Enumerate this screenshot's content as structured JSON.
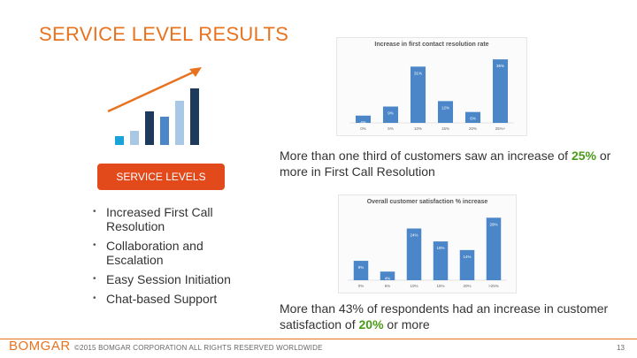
{
  "slide": {
    "title": "SERVICE LEVEL RESULTS",
    "pill_label": "SERVICE LEVELS",
    "bullets": [
      "Increased First Call Resolution",
      "Collaboration and Escalation",
      "Easy Session Initiation",
      "Chat-based Support"
    ]
  },
  "captions": {
    "first": {
      "pre": "More than one third of customers saw an increase of ",
      "highlight": "25%",
      "post": " or more in First Call Resolution"
    },
    "second": {
      "pre": "More than 43% of respondents had an increase in customer satisfaction of ",
      "highlight": "20%",
      "post": " or more"
    }
  },
  "footer": {
    "brand": "BOMGAR",
    "copyright": "©2015 BOMGAR CORPORATION ALL RIGHTS RESERVED WORLDWIDE",
    "page_number": "13"
  },
  "colors": {
    "accent_orange": "#e8731f",
    "pill_red": "#e24a1c",
    "highlight_green": "#4a9a1a",
    "bar_blue": "#4a86c8"
  },
  "chart_data": [
    {
      "type": "bar",
      "title": "Increase in first contact resolution rate",
      "categories": [
        "0%",
        "5%",
        "10%",
        "15%",
        "20%",
        "25%+"
      ],
      "values": [
        4,
        9,
        31,
        12,
        6,
        35
      ],
      "value_labels": [
        "4%",
        "9%",
        "31%",
        "12%",
        "6%",
        "35%"
      ]
    },
    {
      "type": "bar",
      "title": "Overall customer satisfaction % increase",
      "categories": [
        "0%",
        "5%",
        "10%",
        "15%",
        "20%",
        ">25%"
      ],
      "values": [
        9,
        4,
        24,
        18,
        14,
        29
      ],
      "value_labels": [
        "9%",
        "4%",
        "24%",
        "18%",
        "14%",
        "29%"
      ]
    }
  ]
}
